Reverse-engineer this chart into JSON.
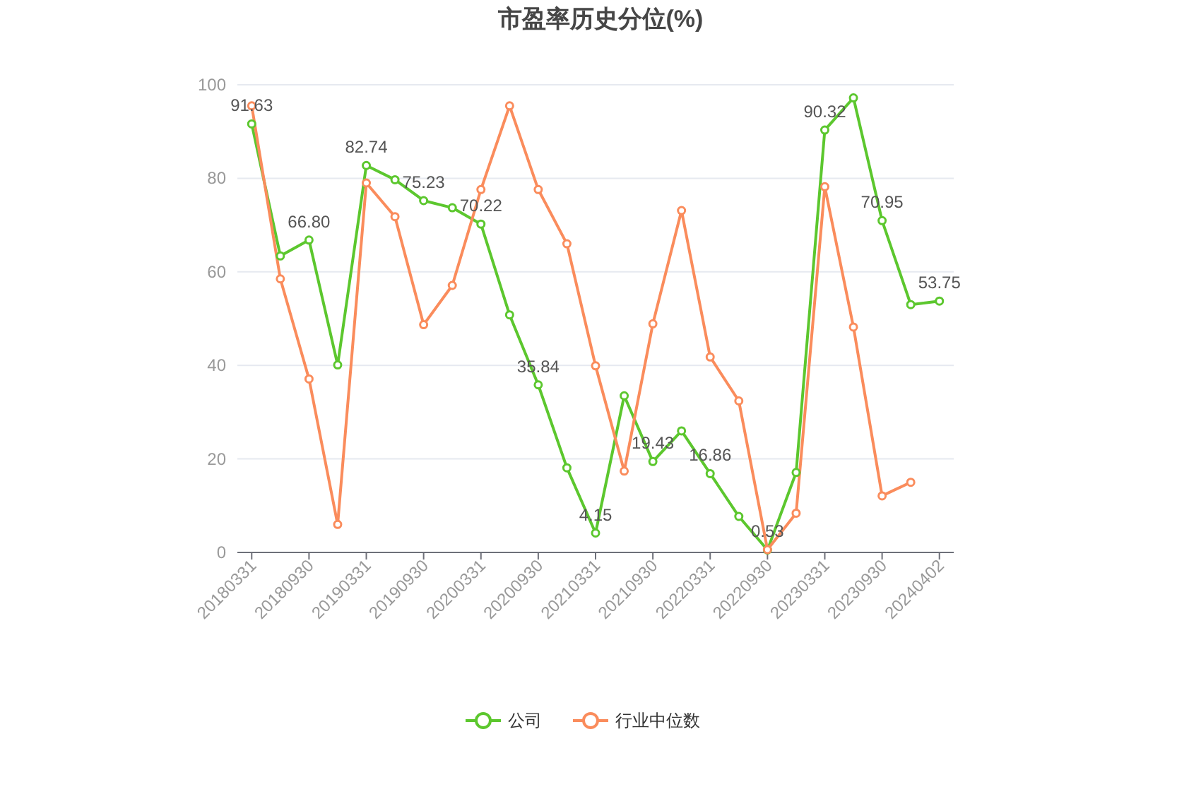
{
  "chart_data": {
    "type": "line",
    "title": "市盈率历史分位(%)",
    "categories": [
      "20180331",
      null,
      "20180930",
      null,
      "20190331",
      null,
      "20190930",
      null,
      "20200331",
      null,
      "20200930",
      null,
      "20210331",
      null,
      "20210930",
      null,
      "20220331",
      null,
      "20220930",
      null,
      "20230331",
      null,
      "20230930",
      null,
      "20240402"
    ],
    "series": [
      {
        "name": "公司",
        "color": "#5cc72e",
        "values": [
          91.63,
          63.4,
          66.8,
          40.1,
          82.74,
          79.7,
          75.23,
          73.7,
          70.22,
          50.8,
          35.84,
          18.1,
          4.15,
          33.5,
          19.43,
          26.0,
          16.86,
          7.7,
          0.53,
          17.1,
          90.32,
          97.2,
          70.95,
          53.0,
          53.75
        ],
        "value_labels": [
          "91.63",
          null,
          "66.80",
          null,
          "82.74",
          null,
          "75.23",
          null,
          "70.22",
          null,
          "35.84",
          null,
          "4.15",
          null,
          "19.43",
          null,
          "16.86",
          null,
          "0.53",
          null,
          "90.32",
          null,
          "70.95",
          null,
          "53.75"
        ]
      },
      {
        "name": "行业中位数",
        "color": "#fa8c5c",
        "values": [
          95.5,
          58.5,
          37.1,
          6.0,
          79.0,
          71.8,
          48.7,
          57.1,
          77.6,
          95.5,
          77.6,
          66.0,
          39.9,
          17.4,
          48.9,
          73.1,
          41.8,
          32.4,
          0.6,
          8.4,
          78.2,
          48.2,
          12.1,
          15.0,
          null
        ]
      }
    ],
    "ylim": [
      0,
      100
    ],
    "yticks": [
      0,
      20,
      40,
      60,
      80,
      100
    ],
    "grid": "y",
    "legend": "bottom",
    "marker": "circle"
  }
}
